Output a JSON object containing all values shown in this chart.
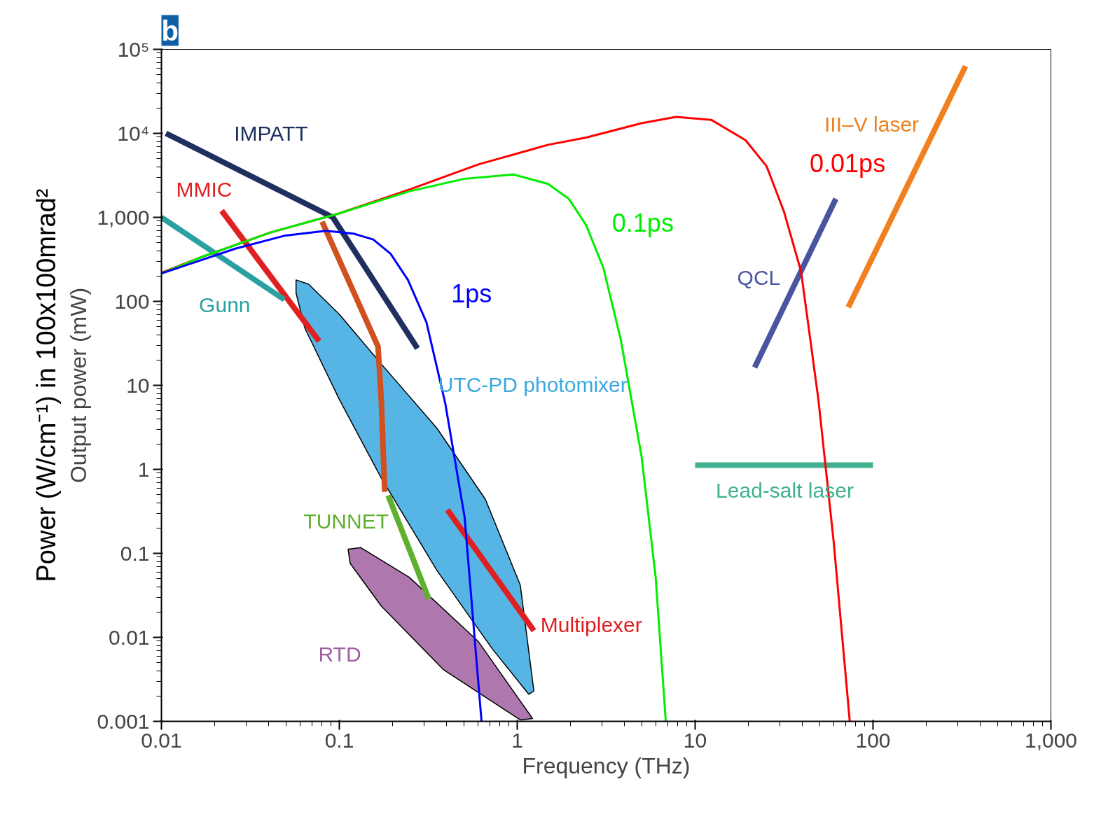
{
  "chart_data": {
    "type": "line",
    "xlabel": "Frequency (THz)",
    "ylabel": "Output power (mW)",
    "log": "xy",
    "grid": false,
    "xlim": [
      0.01,
      1000
    ],
    "ylim": [
      0.001,
      100000
    ],
    "xticks": [
      0.01,
      0.1,
      1,
      10,
      100,
      {
        "value": 1000,
        "label": "1,000"
      }
    ],
    "yticks": [
      0.001,
      0.01,
      0.1,
      1,
      10,
      100,
      {
        "value": 1000,
        "label": "1,000"
      },
      {
        "value": 10000,
        "label": "10⁴"
      },
      {
        "value": 100000,
        "label": "10⁵"
      }
    ],
    "series": [
      {
        "name": "IMPATT",
        "color": "#1f3060",
        "x": [
          0.0106,
          0.092,
          0.275
        ],
        "values": [
          10000,
          1000,
          27.5
        ]
      },
      {
        "name": "MMIC",
        "color": "#e02020",
        "x": [
          0.0218,
          0.077
        ],
        "values": [
          1200,
          33.5
        ]
      },
      {
        "name": "Multiplexer",
        "color": "#e02020",
        "x": [
          0.405,
          1.24
        ],
        "values": [
          0.33,
          0.012
        ]
      },
      {
        "name": "Gunn",
        "color": "#2aa0a0",
        "x": [
          0.01,
          0.049
        ],
        "values": [
          1000,
          105
        ]
      },
      {
        "color": "#d05020",
        "x": [
          0.08,
          0.165,
          0.172,
          0.18
        ],
        "values": [
          890,
          29,
          6.8,
          0.54
        ]
      },
      {
        "name": "TUNNET",
        "color": "#60b030",
        "x": [
          0.188,
          0.318
        ],
        "values": [
          0.49,
          0.0287
        ]
      },
      {
        "name": "QCL",
        "color": "#4a55a0",
        "x": [
          21.6,
          61.8
        ],
        "values": [
          16.3,
          1660
        ]
      },
      {
        "name": "III–V laser",
        "color": "#f08020",
        "x": [
          72.6,
          331
        ],
        "values": [
          85,
          63000
        ]
      },
      {
        "name": "Lead-salt laser",
        "color": "#40b090",
        "x": [
          10,
          100
        ],
        "values": [
          1.12,
          1.12
        ]
      },
      {
        "name": "UTC-PD photomixer",
        "type": "area",
        "color": "#3aa8e0",
        "x": [
          0.0571,
          0.0672,
          0.1,
          0.172,
          0.353,
          0.662,
          1.04,
          1.24,
          1.16,
          0.724,
          0.353,
          0.172,
          0.1,
          0.064,
          0.0571
        ],
        "values": [
          180,
          160,
          70,
          18,
          3.1,
          0.44,
          0.042,
          0.0023,
          0.0021,
          0.0073,
          0.063,
          0.79,
          6.8,
          48,
          126
        ]
      },
      {
        "name": "RTD",
        "type": "area",
        "color": "#a060a0",
        "x": [
          0.112,
          0.132,
          0.247,
          0.605,
          1.22,
          1.04,
          0.386,
          0.172,
          0.115
        ],
        "values": [
          0.112,
          0.117,
          0.052,
          0.0089,
          0.00108,
          0.00104,
          0.0041,
          0.0236,
          0.076
        ]
      },
      {
        "name": "0.01ps",
        "color": "#ff0000",
        "x": [
          0.01,
          0.0167,
          0.041,
          0.101,
          0.247,
          0.605,
          1.49,
          2.44,
          5.0,
          7.8,
          12.3,
          19.2,
          25.2,
          31.5,
          39.4,
          49.3,
          60.1,
          74
        ],
        "values": [
          219,
          335,
          660,
          1122,
          2140,
          4270,
          7300,
          8900,
          13200,
          15700,
          14500,
          8300,
          4070,
          1190,
          227,
          6.8,
          0.137,
          0.001
        ]
      },
      {
        "name": "0.1ps",
        "color": "#00ee00",
        "x": [
          0.01,
          0.0167,
          0.041,
          0.101,
          0.247,
          0.506,
          0.95,
          1.49,
          1.95,
          2.44,
          3.05,
          3.82,
          5.0,
          6.0,
          6.84
        ],
        "values": [
          215,
          335,
          660,
          1122,
          2040,
          2880,
          3240,
          2500,
          1660,
          807,
          250,
          35,
          1.42,
          0.052,
          0.001
        ]
      },
      {
        "name": "1ps",
        "color": "#0000ff",
        "x": [
          0.01,
          0.026,
          0.049,
          0.084,
          0.12,
          0.155,
          0.194,
          0.243,
          0.309,
          0.394,
          0.506,
          0.63
        ],
        "values": [
          215,
          424,
          603,
          690,
          640,
          545,
          370,
          180,
          56,
          6.1,
          0.27,
          0.001
        ]
      }
    ],
    "annotations": [
      "b",
      "Power (W/cm⁻¹) in 100x100mrad²"
    ]
  }
}
